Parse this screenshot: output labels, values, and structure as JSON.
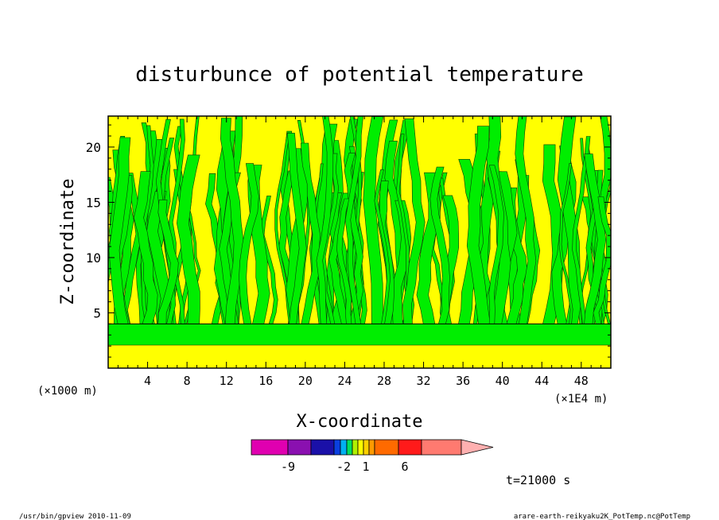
{
  "chart_data": {
    "type": "heatmap",
    "title": "disturbunce of potential temperature",
    "xlabel": "X-coordinate",
    "ylabel": "Z-coordinate",
    "x_unit": "(×1E4 m)",
    "y_unit": "(×1000 m)",
    "xlim": [
      0,
      51
    ],
    "ylim": [
      0,
      22.8
    ],
    "x_ticks": [
      4,
      8,
      12,
      16,
      20,
      24,
      28,
      32,
      36,
      40,
      44,
      48
    ],
    "y_ticks": [
      5,
      10,
      15,
      20
    ],
    "colorbar": {
      "labels": [
        {
          "value": -9,
          "text": "-9"
        },
        {
          "value": -2,
          "text": "-2"
        },
        {
          "value": 1,
          "text": "1"
        },
        {
          "value": 6,
          "text": "6"
        }
      ],
      "colors": [
        "#e000b0",
        "#8a10b0",
        "#1a10a8",
        "#0a40e0",
        "#00b0f0",
        "#00e060",
        "#b0f000",
        "#ffff00",
        "#ffd000",
        "#ff9a00",
        "#ff6a00",
        "#ff1a1a",
        "#ff7a70",
        "#ffb0b0"
      ]
    },
    "field_colors": {
      "positive": "#ffff00",
      "negative": "#00ee00"
    },
    "near_surface_bands": [
      {
        "z_from": 0,
        "z_to": 2.1,
        "sign": "positive"
      },
      {
        "z_from": 2.1,
        "z_to": 4.0,
        "sign": "negative"
      }
    ],
    "time_label": "t=21000 s"
  },
  "footer": {
    "left": "/usr/bin/gpview   2010-11-09",
    "right": "arare-earth-reikyaku2K_PotTemp.nc@PotTemp"
  }
}
